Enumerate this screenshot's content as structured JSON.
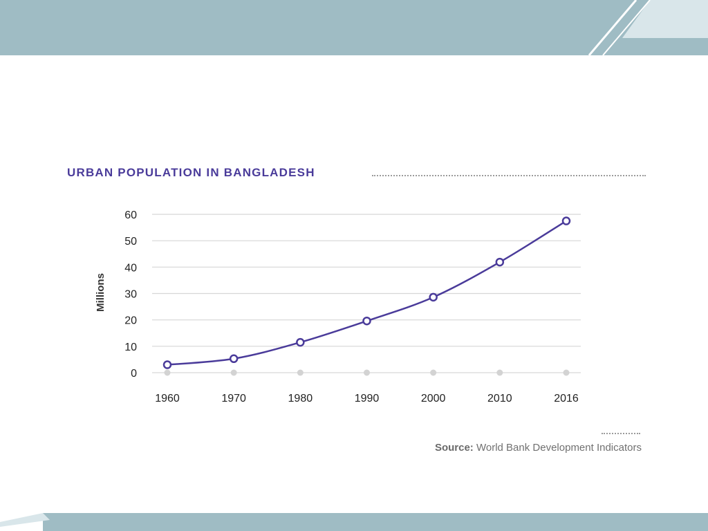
{
  "colors": {
    "banner": "#9fbcc4",
    "banner_light": "#d9e6ea",
    "line": "#4a3b9a",
    "grid": "#d6d6d6",
    "zero_marker": "#d3d3d3",
    "title": "#4a3b9a"
  },
  "source": {
    "label": "Source:",
    "text": "World Bank Development Indicators"
  },
  "chart_data": {
    "type": "line",
    "title": "URBAN POPULATION IN BANGLADESH",
    "xlabel": "",
    "ylabel": "Millions",
    "categories": [
      "1960",
      "1970",
      "1980",
      "1990",
      "2000",
      "2010",
      "2016"
    ],
    "series": [
      {
        "values": [
          3.0,
          5.3,
          11.5,
          19.6,
          28.6,
          41.9,
          57.5
        ]
      }
    ],
    "ylim": [
      0,
      60
    ],
    "yticks": [
      0,
      10,
      20,
      30,
      40,
      50,
      60
    ],
    "grid": true,
    "legend": "none"
  }
}
